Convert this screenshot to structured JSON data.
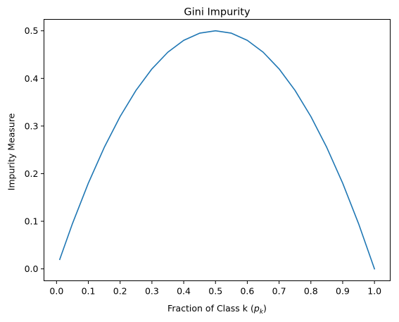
{
  "chart_data": {
    "type": "line",
    "title": "Gini Impurity",
    "xlabel": "Fraction of Class k (",
    "xlabel_symbol": "p",
    "xlabel_subscript": "k",
    "xlabel_suffix": ")",
    "ylabel": "Impurity Measure",
    "xlim": [
      -0.0395,
      1.0495
    ],
    "ylim": [
      -0.025,
      0.524
    ],
    "xticks": [
      0.0,
      0.1,
      0.2,
      0.3,
      0.4,
      0.5,
      0.6,
      0.7,
      0.8,
      0.9,
      1.0
    ],
    "xtick_labels": [
      "0.0",
      "0.1",
      "0.2",
      "0.3",
      "0.4",
      "0.5",
      "0.6",
      "0.7",
      "0.8",
      "0.9",
      "1.0"
    ],
    "yticks": [
      0.0,
      0.1,
      0.2,
      0.3,
      0.4,
      0.5
    ],
    "ytick_labels": [
      "0.0",
      "0.1",
      "0.2",
      "0.3",
      "0.4",
      "0.5"
    ],
    "grid": false,
    "line_color": "#1f77b4",
    "series": [
      {
        "x": [
          0.01,
          0.05,
          0.1,
          0.15,
          0.2,
          0.25,
          0.3,
          0.35,
          0.4,
          0.45,
          0.5,
          0.55,
          0.6,
          0.65,
          0.7,
          0.75,
          0.8,
          0.85,
          0.9,
          0.95,
          1.0
        ],
        "y": [
          0.0198,
          0.095,
          0.18,
          0.255,
          0.32,
          0.375,
          0.42,
          0.455,
          0.48,
          0.495,
          0.5,
          0.495,
          0.48,
          0.455,
          0.42,
          0.375,
          0.32,
          0.255,
          0.18,
          0.095,
          0.0
        ]
      }
    ]
  }
}
